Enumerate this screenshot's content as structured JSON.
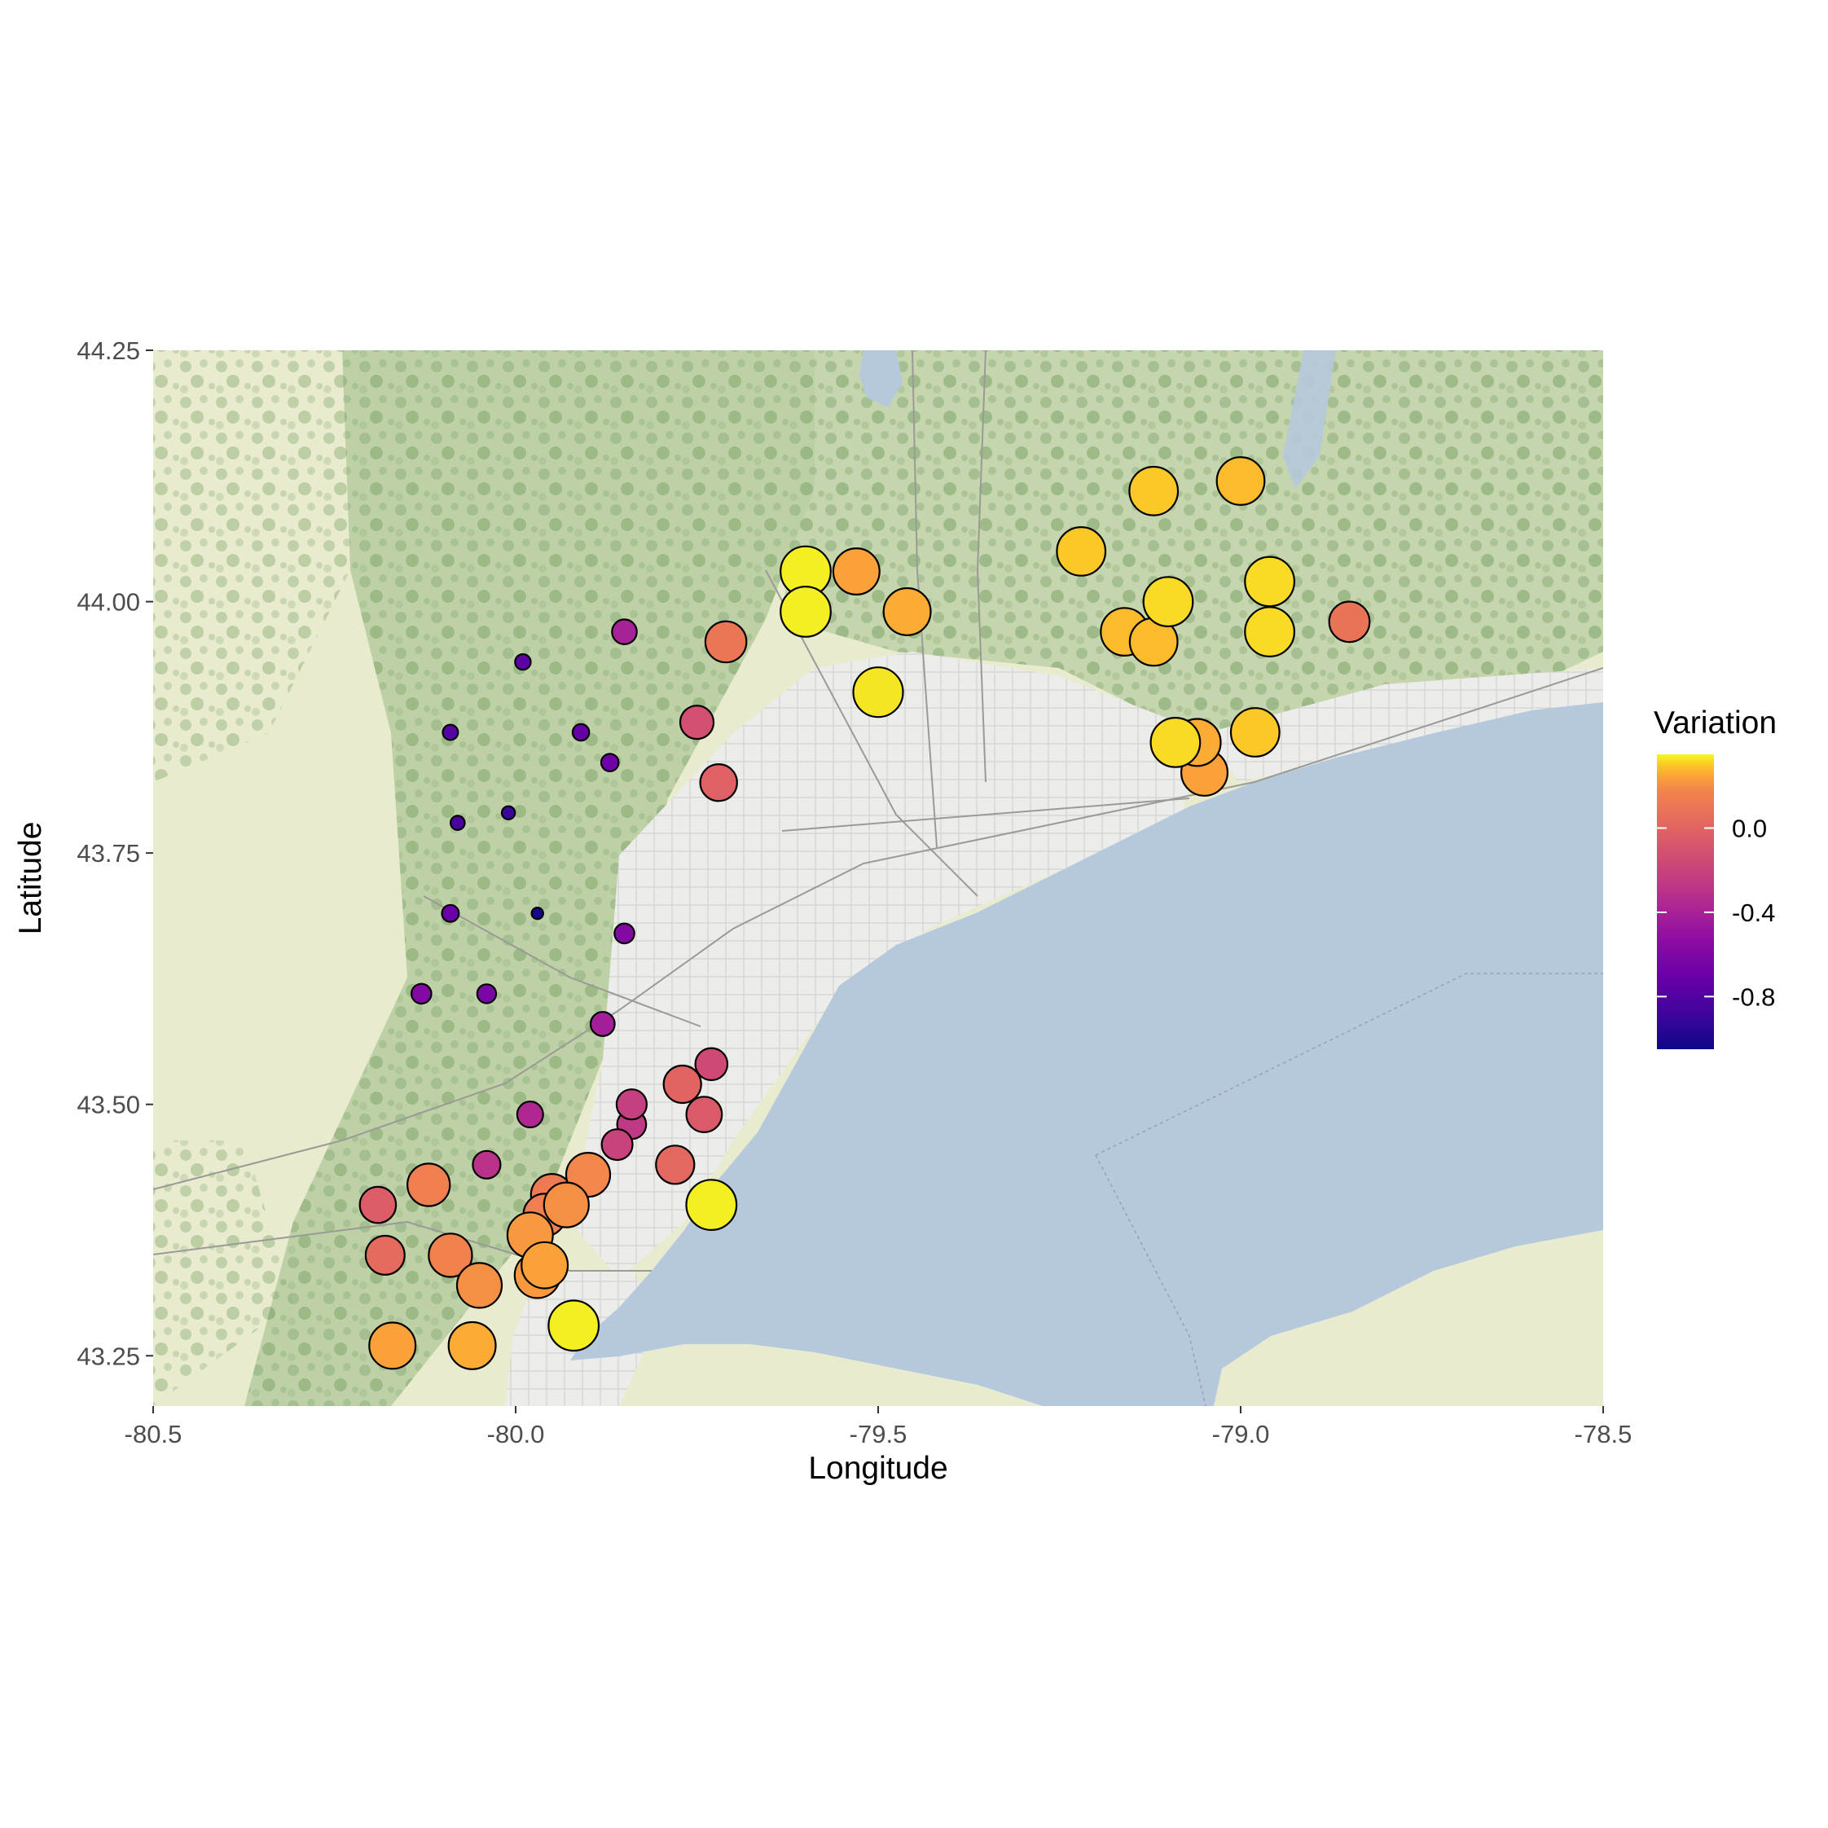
{
  "chart_data": {
    "type": "scatter",
    "title": "",
    "xlabel": "Longitude",
    "ylabel": "Latitude",
    "xlim": [
      -80.5,
      -78.5
    ],
    "ylim": [
      43.2,
      44.25
    ],
    "x_ticks": [
      -80.5,
      -80.0,
      -79.5,
      -79.0,
      -78.5
    ],
    "x_tick_labels": [
      "-80.5",
      "-80.0",
      "-79.5",
      "-79.0",
      "-78.5"
    ],
    "y_ticks": [
      43.25,
      43.5,
      43.75,
      44.0,
      44.25
    ],
    "y_tick_labels": [
      "43.25",
      "43.50",
      "43.75",
      "44.00",
      "44.25"
    ],
    "basemap": "street map tiles of the Toronto / Golden Horseshoe region with Lake Ontario",
    "legend": {
      "title": "Variation",
      "position": "right",
      "colormap": "plasma",
      "range": [
        -1.05,
        0.35
      ],
      "ticks": [
        0.0,
        -0.4,
        -0.8
      ],
      "tick_labels": [
        "0.0",
        "-0.4",
        "-0.8"
      ]
    },
    "size_scale_note": "point size increases with Variation",
    "points": [
      {
        "lon": -79.97,
        "lat": 43.69,
        "variation": -1.02
      },
      {
        "lon": -80.01,
        "lat": 43.79,
        "variation": -0.9
      },
      {
        "lon": -80.08,
        "lat": 43.78,
        "variation": -0.84
      },
      {
        "lon": -80.09,
        "lat": 43.87,
        "variation": -0.78
      },
      {
        "lon": -79.99,
        "lat": 43.94,
        "variation": -0.76
      },
      {
        "lon": -79.91,
        "lat": 43.87,
        "variation": -0.72
      },
      {
        "lon": -79.87,
        "lat": 43.84,
        "variation": -0.68
      },
      {
        "lon": -80.09,
        "lat": 43.69,
        "variation": -0.7
      },
      {
        "lon": -80.04,
        "lat": 43.61,
        "variation": -0.62
      },
      {
        "lon": -80.13,
        "lat": 43.61,
        "variation": -0.58
      },
      {
        "lon": -79.85,
        "lat": 43.67,
        "variation": -0.58
      },
      {
        "lon": -79.88,
        "lat": 43.58,
        "variation": -0.42
      },
      {
        "lon": -79.85,
        "lat": 43.97,
        "variation": -0.4
      },
      {
        "lon": -79.98,
        "lat": 43.49,
        "variation": -0.36
      },
      {
        "lon": -80.04,
        "lat": 43.44,
        "variation": -0.3
      },
      {
        "lon": -79.84,
        "lat": 43.48,
        "variation": -0.26
      },
      {
        "lon": -79.84,
        "lat": 43.5,
        "variation": -0.22
      },
      {
        "lon": -79.86,
        "lat": 43.46,
        "variation": -0.2
      },
      {
        "lon": -79.73,
        "lat": 43.54,
        "variation": -0.16
      },
      {
        "lon": -79.75,
        "lat": 43.88,
        "variation": -0.12
      },
      {
        "lon": -79.74,
        "lat": 43.49,
        "variation": -0.06
      },
      {
        "lon": -80.19,
        "lat": 43.4,
        "variation": -0.04
      },
      {
        "lon": -79.72,
        "lat": 43.82,
        "variation": -0.02
      },
      {
        "lon": -79.77,
        "lat": 43.52,
        "variation": 0.0
      },
      {
        "lon": -79.78,
        "lat": 43.44,
        "variation": 0.02
      },
      {
        "lon": -80.18,
        "lat": 43.35,
        "variation": 0.04
      },
      {
        "lon": -78.85,
        "lat": 43.98,
        "variation": 0.08
      },
      {
        "lon": -79.71,
        "lat": 43.96,
        "variation": 0.1
      },
      {
        "lon": -79.95,
        "lat": 43.41,
        "variation": 0.12
      },
      {
        "lon": -80.12,
        "lat": 43.42,
        "variation": 0.14
      },
      {
        "lon": -80.09,
        "lat": 43.35,
        "variation": 0.16
      },
      {
        "lon": -79.9,
        "lat": 43.43,
        "variation": 0.18
      },
      {
        "lon": -79.96,
        "lat": 43.39,
        "variation": 0.14
      },
      {
        "lon": -79.93,
        "lat": 43.4,
        "variation": 0.2
      },
      {
        "lon": -80.05,
        "lat": 43.32,
        "variation": 0.2
      },
      {
        "lon": -79.97,
        "lat": 43.33,
        "variation": 0.22
      },
      {
        "lon": -79.98,
        "lat": 43.37,
        "variation": 0.22
      },
      {
        "lon": -79.96,
        "lat": 43.34,
        "variation": 0.24
      },
      {
        "lon": -80.17,
        "lat": 43.26,
        "variation": 0.24
      },
      {
        "lon": -80.06,
        "lat": 43.26,
        "variation": 0.26
      },
      {
        "lon": -79.06,
        "lat": 43.86,
        "variation": 0.26
      },
      {
        "lon": -79.05,
        "lat": 43.83,
        "variation": 0.24
      },
      {
        "lon": -79.53,
        "lat": 44.03,
        "variation": 0.24
      },
      {
        "lon": -79.46,
        "lat": 43.99,
        "variation": 0.26
      },
      {
        "lon": -79.16,
        "lat": 43.97,
        "variation": 0.28
      },
      {
        "lon": -79.12,
        "lat": 43.96,
        "variation": 0.28
      },
      {
        "lon": -79.0,
        "lat": 44.12,
        "variation": 0.28
      },
      {
        "lon": -79.12,
        "lat": 44.11,
        "variation": 0.3
      },
      {
        "lon": -79.22,
        "lat": 44.05,
        "variation": 0.3
      },
      {
        "lon": -78.98,
        "lat": 43.87,
        "variation": 0.3
      },
      {
        "lon": -79.09,
        "lat": 43.86,
        "variation": 0.32
      },
      {
        "lon": -79.1,
        "lat": 44.0,
        "variation": 0.32
      },
      {
        "lon": -78.96,
        "lat": 44.02,
        "variation": 0.32
      },
      {
        "lon": -78.96,
        "lat": 43.97,
        "variation": 0.32
      },
      {
        "lon": -79.5,
        "lat": 43.91,
        "variation": 0.33
      },
      {
        "lon": -79.6,
        "lat": 44.03,
        "variation": 0.34
      },
      {
        "lon": -79.6,
        "lat": 43.99,
        "variation": 0.34
      },
      {
        "lon": -79.73,
        "lat": 43.4,
        "variation": 0.34
      },
      {
        "lon": -79.92,
        "lat": 43.28,
        "variation": 0.34
      }
    ]
  }
}
